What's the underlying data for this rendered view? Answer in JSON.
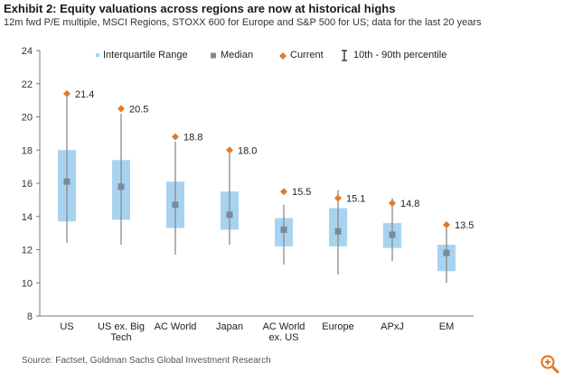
{
  "title": "Exhibit 2: Equity valuations across regions are now at historical highs",
  "subtitle": "12m fwd P/E multiple, MSCI Regions, STOXX 600 for Europe and S&P 500 for US; data for the last 20 years",
  "source": "Source: Factset, Goldman Sachs Global Investment Research",
  "colors": {
    "box": "#a8d3f0",
    "whisker": "#8a8a8a",
    "median": "#7a8a99",
    "current": "#e07b2a"
  },
  "icons": {
    "zoom": "zoom-in-icon"
  },
  "chart_data": {
    "type": "box",
    "ylim": [
      8,
      24
    ],
    "yticks": [
      "8",
      "10",
      "12",
      "14",
      "16",
      "18",
      "20",
      "22",
      "24"
    ],
    "legend": {
      "placement": "top",
      "iqr": "Interquartile Range",
      "median": "Median",
      "current": "Current",
      "range": "10th - 90th percentile"
    },
    "categories": [
      {
        "label": [
          "US"
        ],
        "p10": 12.4,
        "q1": 13.7,
        "median": 16.1,
        "q3": 18.0,
        "p90": 21.3,
        "current": 21.4,
        "current_label": "21.4"
      },
      {
        "label": [
          "US ex. Big",
          "Tech"
        ],
        "p10": 12.3,
        "q1": 13.8,
        "median": 15.8,
        "q3": 17.4,
        "p90": 20.2,
        "current": 20.5,
        "current_label": "20.5"
      },
      {
        "label": [
          "AC World"
        ],
        "p10": 11.7,
        "q1": 13.3,
        "median": 14.7,
        "q3": 16.1,
        "p90": 18.5,
        "current": 18.8,
        "current_label": "18.8"
      },
      {
        "label": [
          "Japan"
        ],
        "p10": 12.3,
        "q1": 13.2,
        "median": 14.1,
        "q3": 15.5,
        "p90": 17.8,
        "current": 18.0,
        "current_label": "18.0"
      },
      {
        "label": [
          "AC World",
          "ex. US"
        ],
        "p10": 11.1,
        "q1": 12.2,
        "median": 13.2,
        "q3": 13.9,
        "p90": 14.7,
        "current": 15.5,
        "current_label": "15.5"
      },
      {
        "label": [
          "Europe"
        ],
        "p10": 10.5,
        "q1": 12.2,
        "median": 13.1,
        "q3": 14.5,
        "p90": 15.6,
        "current": 15.1,
        "current_label": "15.1"
      },
      {
        "label": [
          "APxJ"
        ],
        "p10": 11.3,
        "q1": 12.1,
        "median": 12.9,
        "q3": 13.6,
        "p90": 15.1,
        "current": 14.8,
        "current_label": "14.8"
      },
      {
        "label": [
          "EM"
        ],
        "p10": 10.0,
        "q1": 10.7,
        "median": 11.8,
        "q3": 12.3,
        "p90": 13.3,
        "current": 13.5,
        "current_label": "13.5"
      }
    ]
  }
}
